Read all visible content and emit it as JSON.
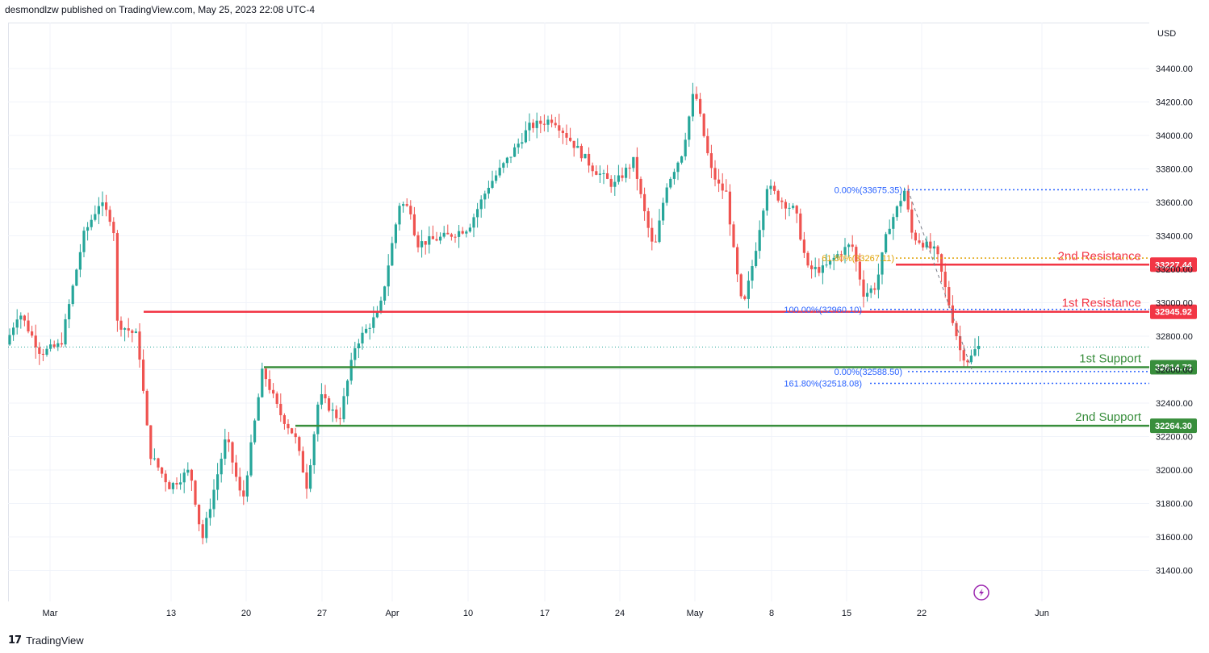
{
  "header": {
    "published_by": "desmondlzw published on TradingView.com, May 25, 2023 22:08 UTC-4"
  },
  "footer": {
    "brand": "TradingView",
    "logo_glyph": "17"
  },
  "colors": {
    "up": "#26a69a",
    "down": "#ef5350",
    "resistance": "#f23645",
    "support": "#388e3c",
    "fib_blue": "#2962ff",
    "fib_gold": "#e0a100",
    "grid": "#f0f3fa",
    "last_line": "#26a69a"
  },
  "chart_data": {
    "type": "candlestick",
    "currency": "USD",
    "y_ticks": [
      "34400.00",
      "34200.00",
      "34000.00",
      "33800.00",
      "33600.00",
      "33400.00",
      "33200.00",
      "33000.00",
      "32800.00",
      "32600.00",
      "32400.00",
      "32200.00",
      "32000.00",
      "31800.00",
      "31600.00",
      "31400.00"
    ],
    "x_ticks": [
      "Mar",
      "13",
      "20",
      "27",
      "Apr",
      "10",
      "17",
      "24",
      "May",
      "8",
      "15",
      "22",
      "Jun"
    ],
    "ylim": [
      31250,
      34600
    ],
    "grid": true,
    "levels": [
      {
        "label": "2nd Resistance",
        "value": "33227.44",
        "kind": "resistance"
      },
      {
        "label": "1st Resistance",
        "value": "32945.92",
        "kind": "resistance"
      },
      {
        "label": "1st Support",
        "value": "32614.73",
        "kind": "support"
      },
      {
        "label": "2nd Support",
        "value": "32264.30",
        "kind": "support"
      }
    ],
    "fibonacci": [
      {
        "text": "0.00%(33675.35)",
        "value": 33675.35,
        "color": "blue"
      },
      {
        "text": "61.80%(33267.11)",
        "value": 33267.11,
        "color": "gold"
      },
      {
        "text": "100.00%(32960.10)",
        "value": 32960.1,
        "color": "blue"
      },
      {
        "text": "0.00%(32588.50)",
        "value": 32588.5,
        "color": "blue"
      },
      {
        "text": "161.80%(32518.08)",
        "value": 32518.08,
        "color": "blue"
      }
    ],
    "last_price": 32735,
    "key_prices": {
      "late_feb_start": 32750,
      "early_mar_high": 33600,
      "mar_low": 31430,
      "apr_high": 34170,
      "may_high": 34280,
      "may_pullback_low": 32950,
      "may_rebound_high": 33675,
      "current": 32735
    }
  },
  "icons": {
    "flash_icon": "lightning-bolt-in-circle"
  }
}
